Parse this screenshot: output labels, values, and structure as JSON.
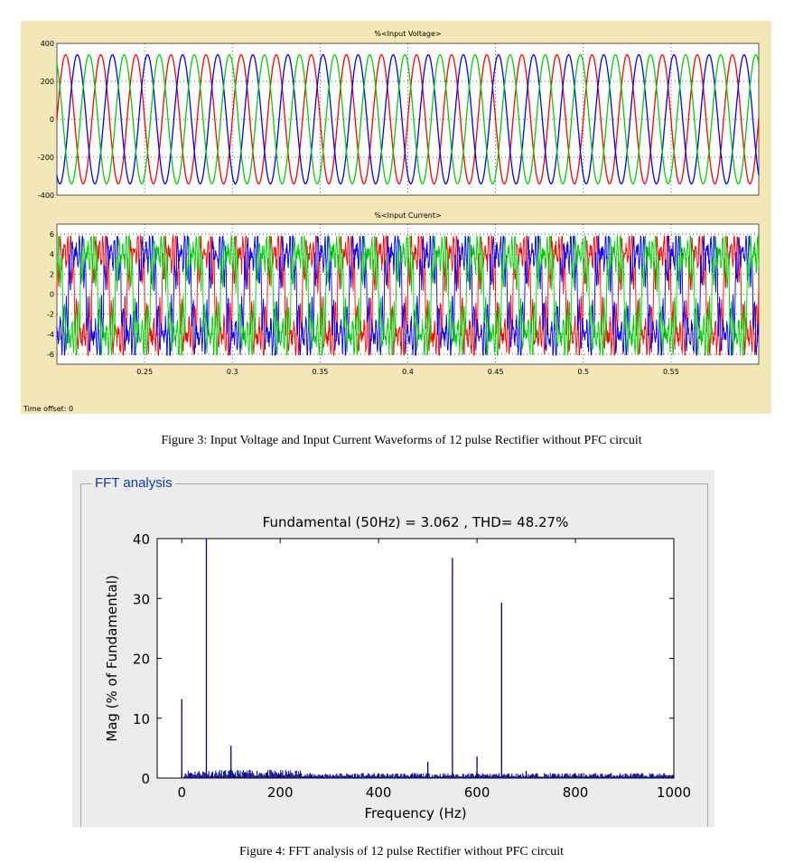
{
  "fig3": {
    "caption": "Figure 3: Input Voltage and Input Current Waveforms of 12 pulse Rectifier without PFC circuit",
    "time_offset_label": "Time offset:",
    "time_offset_value": "0"
  },
  "fig4": {
    "caption": "Figure 4: FFT analysis of 12 pulse Rectifier without PFC circuit",
    "panel_label": "FFT analysis"
  },
  "colors": {
    "phase_a": "#ff0000",
    "phase_b": "#0000ff",
    "phase_c": "#00d000",
    "fft_bar": "#00008b"
  },
  "chart_data": [
    {
      "type": "line",
      "title": "%<Input Voltage>",
      "xlabel": "",
      "ylabel": "",
      "xlim": [
        0.2,
        0.6
      ],
      "ylim": [
        -400,
        400
      ],
      "yticks": [
        400,
        200,
        0,
        -200,
        -400
      ],
      "grid": true,
      "frequency_hz": 50,
      "amplitude": 340,
      "series": [
        {
          "color_key": "phase_a",
          "phase_deg": 0
        },
        {
          "color_key": "phase_b",
          "phase_deg": -120
        },
        {
          "color_key": "phase_c",
          "phase_deg": 120
        }
      ]
    },
    {
      "type": "line",
      "title": "%<Input Current>",
      "xlabel": "",
      "ylabel": "",
      "xlim": [
        0.2,
        0.6
      ],
      "ylim": [
        -7,
        7
      ],
      "yticks": [
        6,
        4,
        2,
        0,
        -2,
        -4,
        -6
      ],
      "xticks": [
        "0.25",
        "0.3",
        "0.35",
        "0.4",
        "0.45",
        "0.5",
        "0.55"
      ],
      "xtick_values": [
        0.25,
        0.3,
        0.35,
        0.4,
        0.45,
        0.5,
        0.55
      ],
      "grid": true,
      "frequency_hz": 50,
      "amplitude": 3.062,
      "peak": 5.5,
      "series": [
        {
          "color_key": "phase_a",
          "phase_deg": 0
        },
        {
          "color_key": "phase_b",
          "phase_deg": -120
        },
        {
          "color_key": "phase_c",
          "phase_deg": 120
        }
      ]
    },
    {
      "type": "bar",
      "title": "Fundamental (50Hz) = 3.062 , THD= 48.27%",
      "xlabel": "Frequency (Hz)",
      "ylabel": "Mag (% of Fundamental)",
      "xlim": [
        -50,
        1000
      ],
      "ylim": [
        0,
        40
      ],
      "xticks": [
        "0",
        "200",
        "400",
        "600",
        "800",
        "1000"
      ],
      "xtick_values": [
        0,
        200,
        400,
        600,
        800,
        1000
      ],
      "yticks": [
        "0",
        "10",
        "20",
        "30",
        "40"
      ],
      "ytick_values": [
        0,
        10,
        20,
        30,
        40
      ],
      "grid": false,
      "noise_floor": 0.6,
      "peaks": [
        {
          "x": 0,
          "y": 13.2
        },
        {
          "x": 50,
          "y": 40
        },
        {
          "x": 100,
          "y": 5.4
        },
        {
          "x": 500,
          "y": 2.7
        },
        {
          "x": 550,
          "y": 36.8
        },
        {
          "x": 600,
          "y": 3.6
        },
        {
          "x": 650,
          "y": 29.3
        },
        {
          "x": 700,
          "y": 1.2
        }
      ]
    }
  ]
}
